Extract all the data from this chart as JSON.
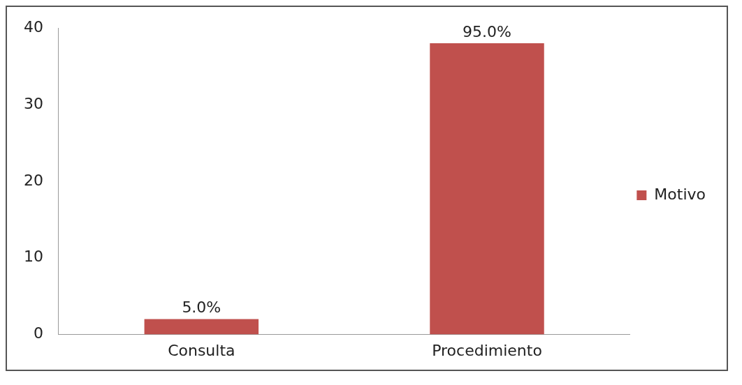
{
  "chart_data": {
    "type": "bar",
    "categories": [
      "Consulta",
      "Procedimiento"
    ],
    "series": [
      {
        "name": "Motivo",
        "color": "#c0504d",
        "values": [
          2,
          38
        ]
      }
    ],
    "value_labels": [
      "5.0%",
      "95.0%"
    ],
    "ylim": [
      0,
      40
    ],
    "yticks": [
      0,
      10,
      20,
      30,
      40
    ],
    "grid": false,
    "legend": "right"
  }
}
